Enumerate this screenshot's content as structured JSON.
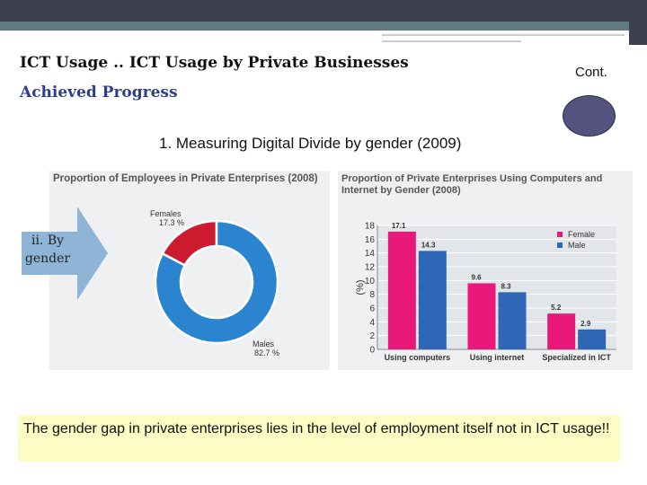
{
  "slide": {
    "title": "ICT Usage .. ICT Usage by Private Businesses",
    "cont_label": "Cont.",
    "subtitle": "Achieved Progress",
    "heading": "1. Measuring Digital Divide by gender (2009)",
    "arrow_label": "ii. By gender",
    "note": "The gender gap in private enterprises lies in the level of employment itself not in ICT usage!!"
  },
  "colors": {
    "female": "#cc1a2e",
    "male": "#2b84cf",
    "bar_female": "#e8197a",
    "bar_male": "#2e67b5",
    "arrow": "#8fb5d6",
    "note_bg": "#fcfcc4",
    "oval": "#54527e"
  },
  "chart_data": [
    {
      "type": "pie",
      "title": "Proportion of Employees in Private Enterprises (2008)",
      "categories": [
        "Females",
        "Males"
      ],
      "values": [
        17.3,
        82.7
      ],
      "unit": "%",
      "donut": true
    },
    {
      "type": "bar",
      "title": "Proportion of Private Enterprises Using Computers and Internet by Gender (2008)",
      "categories": [
        "Using computers",
        "Using internet",
        "Specialized in ICT"
      ],
      "series": [
        {
          "name": "Female",
          "values": [
            17.1,
            9.6,
            5.2
          ]
        },
        {
          "name": "Male",
          "values": [
            14.3,
            8.3,
            2.9
          ]
        }
      ],
      "ylabel": "(%)",
      "ylim": [
        0,
        18
      ],
      "yticks": [
        0,
        2,
        4,
        6,
        8,
        10,
        12,
        14,
        16,
        18
      ],
      "legend": "top-right",
      "grid": true
    }
  ]
}
